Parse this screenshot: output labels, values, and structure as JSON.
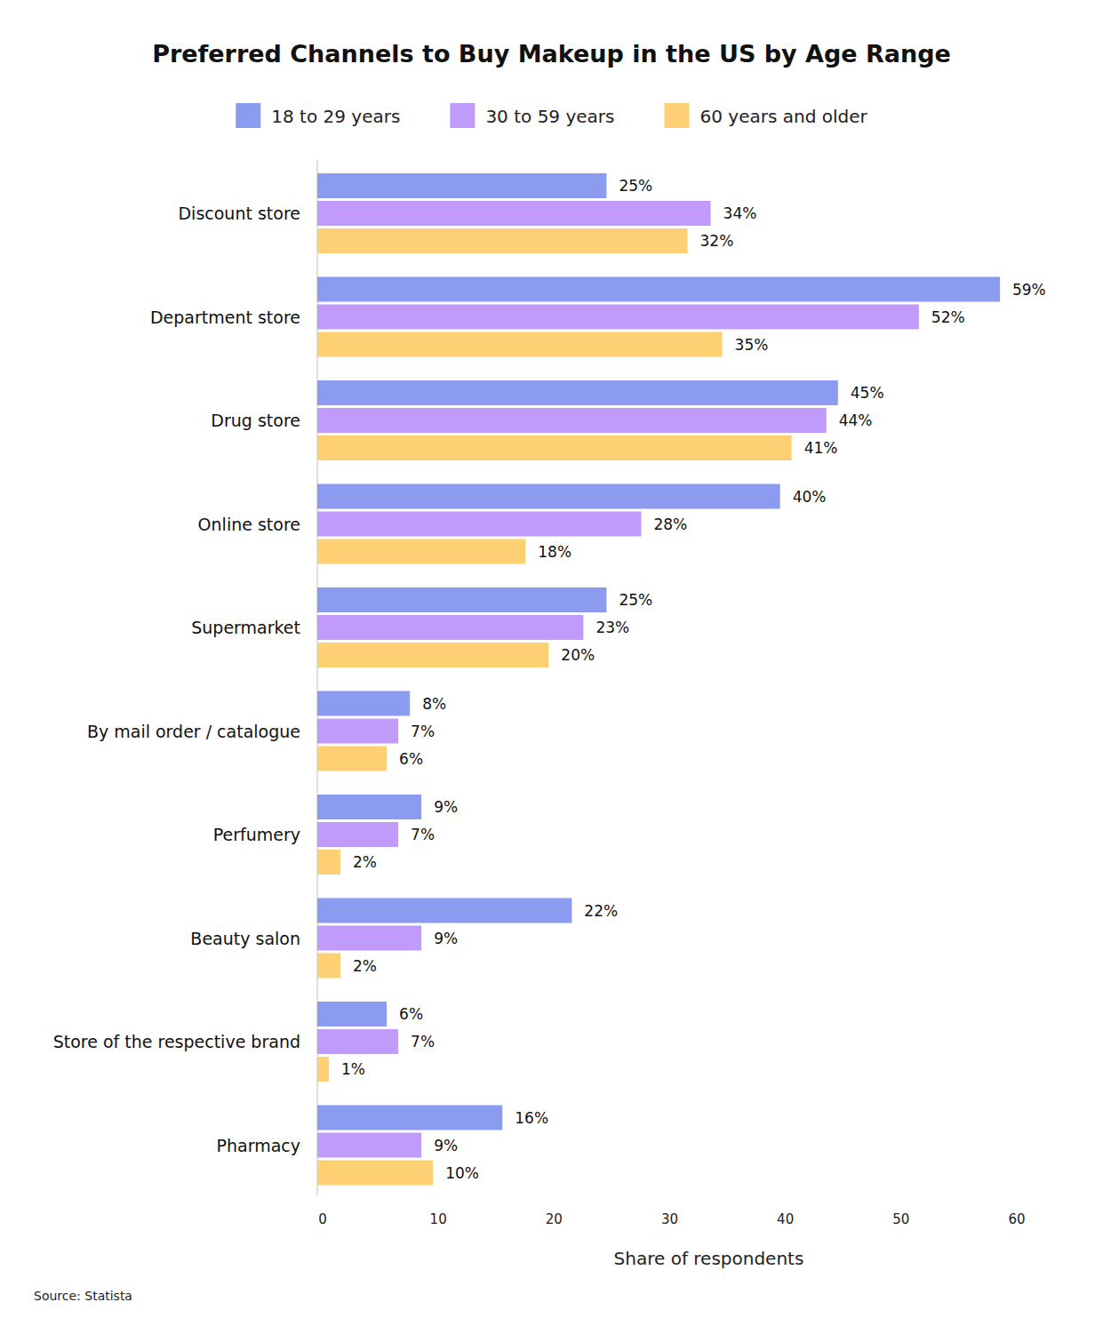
{
  "chart_data": {
    "type": "bar",
    "orientation": "horizontal",
    "title": "Preferred Channels to Buy Makeup in the US by Age Range",
    "x_label": "Share of respondents",
    "source": "Source: Statista",
    "categories": [
      "Discount store",
      "Department store",
      "Drug store",
      "Online store",
      "Supermarket",
      "By mail order / catalogue",
      "Perfumery",
      "Beauty salon",
      "Store of the respective brand",
      "Pharmacy"
    ],
    "series": [
      {
        "name": "18 to 29 years",
        "color": "#8b9cf0",
        "values": [
          25,
          59,
          45,
          40,
          25,
          8,
          9,
          22,
          6,
          16
        ],
        "value_labels": [
          "25%",
          "59%",
          "45%",
          "40%",
          "25%",
          "8%",
          "9%",
          "22%",
          "6%",
          "16%"
        ]
      },
      {
        "name": "30 to 59 years",
        "color": "#c19bfb",
        "values": [
          34,
          52,
          44,
          28,
          23,
          7,
          7,
          9,
          7,
          9
        ],
        "value_labels": [
          "34%",
          "52%",
          "44%",
          "28%",
          "23%",
          "7%",
          "7%",
          "9%",
          "7%",
          "9%"
        ]
      },
      {
        "name": "60 years and older",
        "color": "#fdd173",
        "values": [
          32,
          35,
          41,
          18,
          20,
          6,
          2,
          2,
          1,
          10
        ],
        "value_labels": [
          "32%",
          "35%",
          "41%",
          "18%",
          "20%",
          "6%",
          "2%",
          "2%",
          "1%",
          "10%"
        ]
      }
    ],
    "xlim": [
      0,
      60
    ],
    "xticks": [
      0,
      10,
      20,
      30,
      40,
      50,
      60
    ],
    "grid": false,
    "legend": "top",
    "data_labels": true
  }
}
